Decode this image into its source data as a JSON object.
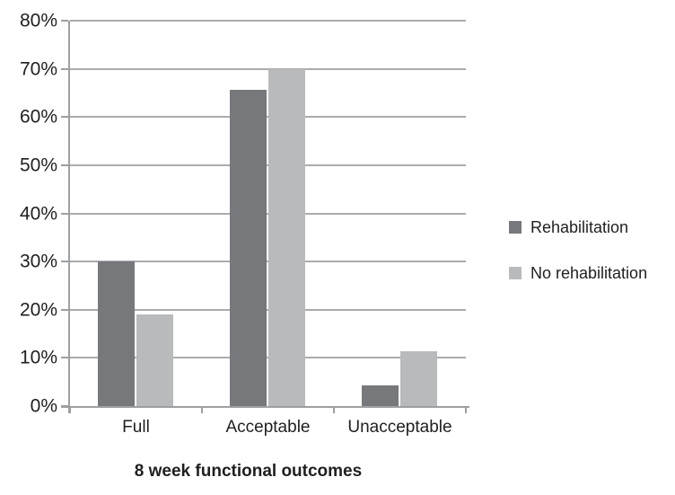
{
  "chart_data": {
    "type": "bar",
    "title": "",
    "xlabel": "8 week functional outcomes",
    "ylabel": "",
    "categories": [
      "Full",
      "Acceptable",
      "Unacceptable"
    ],
    "series": [
      {
        "name": "Rehabilitation",
        "color": "#77787c",
        "values": [
          30,
          65.7,
          4.3
        ]
      },
      {
        "name": "No rehabilitation",
        "color": "#b9babc",
        "values": [
          19,
          70,
          11.4
        ]
      }
    ],
    "ylim": [
      0,
      80
    ],
    "ytick_step": 10,
    "yticklabels": [
      "0%",
      "10%",
      "20%",
      "30%",
      "40%",
      "50%",
      "60%",
      "70%",
      "80%"
    ],
    "grid": true,
    "legend_position": "right",
    "colors": {
      "axis": "#9d9fa2",
      "grid": "#a9abae",
      "text": "#1f1f1f",
      "background": "#ffffff"
    }
  }
}
